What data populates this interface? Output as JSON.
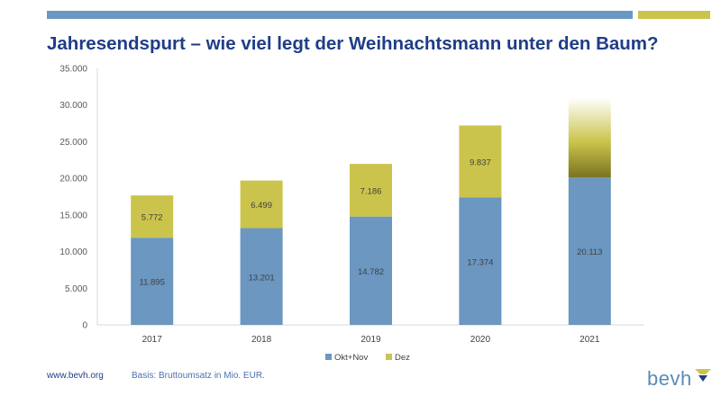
{
  "slide": {
    "title": "Jahresendspurt – wie viel legt der Weihnachtsmann unter den Baum?"
  },
  "footer": {
    "url": "www.bevh.org",
    "basis": "Basis: Bruttoumsatz in Mio. EUR."
  },
  "logo": {
    "text": "bevh"
  },
  "colors": {
    "okt_nov": "#6b97c1",
    "dez": "#cbc44c",
    "dez_gradient_dark": "#7a7320",
    "title": "#1f3d87"
  },
  "chart_data": {
    "type": "bar",
    "stacked": true,
    "categories": [
      "2017",
      "2018",
      "2019",
      "2020",
      "2021"
    ],
    "series": [
      {
        "name": "Okt+Nov",
        "values": [
          11895,
          13201,
          14782,
          17374,
          20113
        ],
        "labels": [
          "11.895",
          "13.201",
          "14.782",
          "17.374",
          "20.113"
        ]
      },
      {
        "name": "Dez",
        "values": [
          5772,
          6499,
          7186,
          9837,
          null
        ],
        "labels": [
          "5.772",
          "6.499",
          "7.186",
          "9.837",
          ""
        ]
      }
    ],
    "ylim": [
      0,
      35000
    ],
    "yticks": [
      0,
      5000,
      10000,
      15000,
      20000,
      25000,
      30000,
      35000
    ],
    "ytick_labels": [
      "0",
      "5.000",
      "10.000",
      "15.000",
      "20.000",
      "25.000",
      "30.000",
      "35.000"
    ],
    "grid": false,
    "legend": "bottom",
    "annotation_2021_dez": "faded gradient segment, value not shown"
  }
}
